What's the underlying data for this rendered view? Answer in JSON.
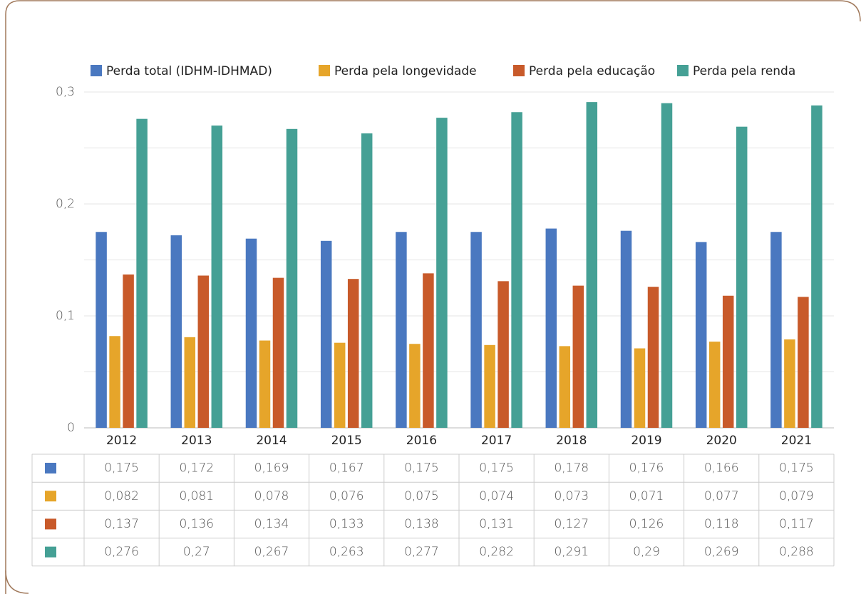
{
  "chart_data": {
    "type": "bar",
    "categories": [
      "2012",
      "2013",
      "2014",
      "2015",
      "2016",
      "2017",
      "2018",
      "2019",
      "2020",
      "2021"
    ],
    "series": [
      {
        "name": "Perda total (IDHM-IDHMAD)",
        "color": "#4a78c0",
        "values": [
          0.175,
          0.172,
          0.169,
          0.167,
          0.175,
          0.175,
          0.178,
          0.176,
          0.166,
          0.175
        ],
        "value_labels": [
          "0,175",
          "0,172",
          "0,169",
          "0,167",
          "0,175",
          "0,175",
          "0,178",
          "0,176",
          "0,166",
          "0,175"
        ]
      },
      {
        "name": "Perda pela longevidade",
        "color": "#e6a52a",
        "values": [
          0.082,
          0.081,
          0.078,
          0.076,
          0.075,
          0.074,
          0.073,
          0.071,
          0.077,
          0.079
        ],
        "value_labels": [
          "0,082",
          "0,081",
          "0,078",
          "0,076",
          "0,075",
          "0,074",
          "0,073",
          "0,071",
          "0,077",
          "0,079"
        ]
      },
      {
        "name": "Perda pela educação",
        "color": "#c85a2a",
        "values": [
          0.137,
          0.136,
          0.134,
          0.133,
          0.138,
          0.131,
          0.127,
          0.126,
          0.118,
          0.117
        ],
        "value_labels": [
          "0,137",
          "0,136",
          "0,134",
          "0,133",
          "0,138",
          "0,131",
          "0,127",
          "0,126",
          "0,118",
          "0,117"
        ]
      },
      {
        "name": "Perda pela renda",
        "color": "#45a095",
        "values": [
          0.276,
          0.27,
          0.267,
          0.263,
          0.277,
          0.282,
          0.291,
          0.29,
          0.269,
          0.288
        ],
        "value_labels": [
          "0,276",
          "0,27",
          "0,267",
          "0,263",
          "0,277",
          "0,282",
          "0,291",
          "0,29",
          "0,269",
          "0,288"
        ]
      }
    ],
    "ylim": [
      0,
      0.3
    ],
    "yticks": [
      0,
      {
        "value": 0.1,
        "label": "0,1"
      },
      {
        "value": 0.2,
        "label": "0,2"
      },
      {
        "value": 0.3,
        "label": "0,3"
      }
    ],
    "minor_yticks": [
      0.05,
      0.15,
      0.25
    ],
    "grid": true,
    "legend": "top"
  }
}
